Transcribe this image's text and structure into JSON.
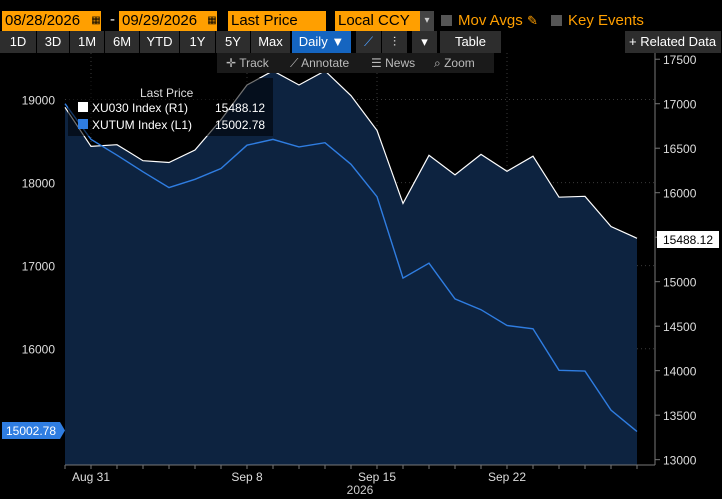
{
  "toolbar": {
    "start_date": "08/28/2026",
    "end_date": "09/29/2026",
    "field": "Last Price",
    "currency": "Local CCY",
    "mov_avgs": "Mov Avgs",
    "key_events": "Key Events",
    "periods": [
      "1D",
      "3D",
      "1M",
      "6M",
      "YTD",
      "1Y",
      "5Y",
      "Max"
    ],
    "frequency": "Daily",
    "table_label": "Table",
    "related_label": "Related Data",
    "tools": [
      "Track",
      "Annotate",
      "News",
      "Zoom"
    ]
  },
  "colors": {
    "accent_orange": "#ff9f00",
    "selected_blue": "#1565c0",
    "series_white": "#ffffff",
    "series_blue": "#2f7de1",
    "area_fill": "#0d2340"
  },
  "chart_data": {
    "type": "area",
    "x": [
      "08/28/2026",
      "08/31/2026",
      "09/01/2026",
      "09/02/2026",
      "09/03/2026",
      "09/04/2026",
      "09/07/2026",
      "09/08/2026",
      "09/09/2026",
      "09/10/2026",
      "09/11/2026",
      "09/14/2026",
      "09/15/2026",
      "09/16/2026",
      "09/17/2026",
      "09/18/2026",
      "09/21/2026",
      "09/22/2026",
      "09/23/2026",
      "09/24/2026",
      "09/25/2026",
      "09/28/2026",
      "09/29/2026"
    ],
    "x_tick_labels": [
      "Aug 31",
      "Sep 8",
      "Sep 15",
      "Sep 22"
    ],
    "x_year_label": "2026",
    "legend_title": "Last Price",
    "series": [
      {
        "name": "XU030 Index  (R1)",
        "last_value": "15488.12",
        "axis": "right",
        "values": [
          16960,
          16520,
          16540,
          16360,
          16340,
          16480,
          16820,
          17210,
          17370,
          17210,
          17370,
          17090,
          16700,
          15880,
          16420,
          16200,
          16430,
          16240,
          16410,
          15950,
          15960,
          15620,
          15488.12
        ]
      },
      {
        "name": "XUTUM Index  (L1)",
        "last_value": "15002.78",
        "axis": "left",
        "values": [
          18950,
          18520,
          18330,
          18130,
          17940,
          18040,
          18170,
          18450,
          18520,
          18430,
          18480,
          18220,
          17830,
          16850,
          17030,
          16600,
          16470,
          16280,
          16240,
          15740,
          15730,
          15260,
          15002.78
        ]
      }
    ],
    "left_axis": {
      "ticks": [
        16000,
        17000,
        18000,
        19000
      ],
      "tick_labels": [
        "16000",
        "17000",
        "18000",
        "19000"
      ],
      "range": [
        14600,
        19560
      ]
    },
    "right_axis": {
      "ticks": [
        13000,
        13500,
        14000,
        14500,
        15000,
        15500,
        16000,
        16500,
        17000,
        17500
      ],
      "tick_labels": [
        "13000",
        "13500",
        "14000",
        "14500",
        "15000",
        "15500",
        "16000",
        "16500",
        "17000",
        "17500"
      ],
      "range": [
        12940,
        17570
      ]
    },
    "grid": true,
    "legend_placement": "top-left"
  }
}
